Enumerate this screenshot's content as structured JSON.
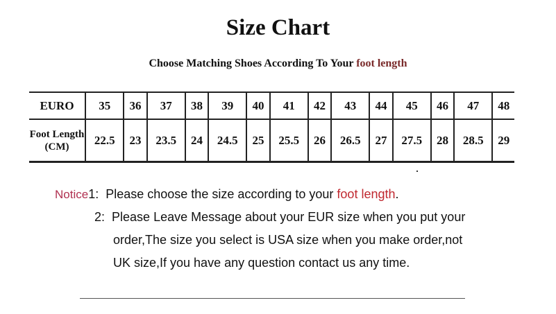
{
  "title": "Size Chart",
  "subtitle": {
    "text": "Choose Matching Shoes According To Your ",
    "highlight": "foot length"
  },
  "table": {
    "row1_header": "EURO",
    "row2_header": "Foot Length (CM)",
    "euro": [
      "35",
      "36",
      "37",
      "38",
      "39",
      "40",
      "41",
      "42",
      "43",
      "44",
      "45",
      "46",
      "47",
      "48"
    ],
    "cm": [
      "22.5",
      "23",
      "23.5",
      "24",
      "24.5",
      "25",
      "25.5",
      "26",
      "26.5",
      "27",
      "27.5",
      "28",
      "28.5",
      "29"
    ]
  },
  "notice": {
    "label": "Notice",
    "n1": "1:",
    "line1_text": "Please choose the size according to your ",
    "line1_highlight": "foot length",
    "line1_end": ".",
    "n2": "2:",
    "line2": "Please Leave Message about your EUR size when you put your",
    "line3": "order,The size you select is USA size when you make order,not",
    "line4": "UK size,If you have any question  contact us any time."
  }
}
